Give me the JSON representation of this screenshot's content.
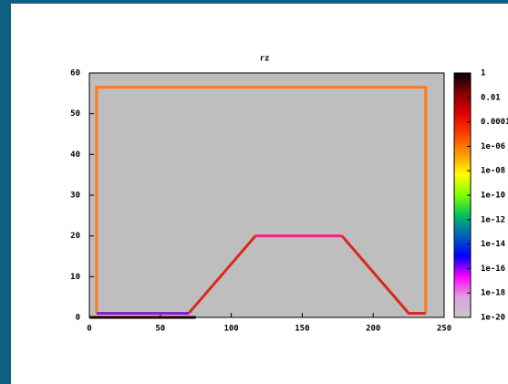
{
  "chart_data": {
    "type": "line",
    "title": "rz",
    "xlim": [
      0,
      250
    ],
    "ylim": [
      0,
      60
    ],
    "xticks": [
      0,
      50,
      100,
      150,
      200,
      250
    ],
    "yticks": [
      0,
      10,
      20,
      30,
      40,
      50,
      60
    ],
    "series": [
      {
        "color": "#ff7a1a",
        "x": [
          5,
          5,
          237,
          237
        ],
        "values": [
          1,
          56.5,
          56.5,
          1
        ]
      },
      {
        "color": "#d82a1c",
        "x": [
          70,
          117
        ],
        "values": [
          1,
          20
        ]
      },
      {
        "color": "#f0208c",
        "x": [
          117,
          178
        ],
        "values": [
          20,
          20
        ]
      },
      {
        "color": "#d82a1c",
        "x": [
          178,
          225,
          237
        ],
        "values": [
          20,
          1,
          1
        ]
      },
      {
        "color": "#8a20c8",
        "x": [
          5,
          70
        ],
        "values": [
          1,
          1
        ]
      },
      {
        "color": "#200000",
        "x": [
          0,
          75
        ],
        "values": [
          0,
          0
        ]
      }
    ],
    "colorbar": {
      "log_scale": true,
      "lim": [
        1e-20,
        1
      ],
      "colors": [
        "#000000",
        "#8b0000",
        "#e00000",
        "#ff4000",
        "#ff9900",
        "#ffff00",
        "#80ff00",
        "#00c060",
        "#0060c0",
        "#0000ff",
        "#ff00ff",
        "#e0a0e0",
        "#c8c8c8"
      ],
      "ticks": [
        1,
        0.01,
        0.0001,
        {
          "value": 1e-06,
          "label": "1e-06"
        },
        {
          "value": 1e-08,
          "label": "1e-08"
        },
        {
          "value": 1e-10,
          "label": "1e-10"
        },
        {
          "value": 1e-12,
          "label": "1e-12"
        },
        {
          "value": 1e-14,
          "label": "1e-14"
        },
        {
          "value": 1e-16,
          "label": "1e-16"
        },
        {
          "value": 1e-18,
          "label": "1e-18"
        },
        {
          "value": 1e-20,
          "label": "1e-20"
        }
      ]
    }
  }
}
